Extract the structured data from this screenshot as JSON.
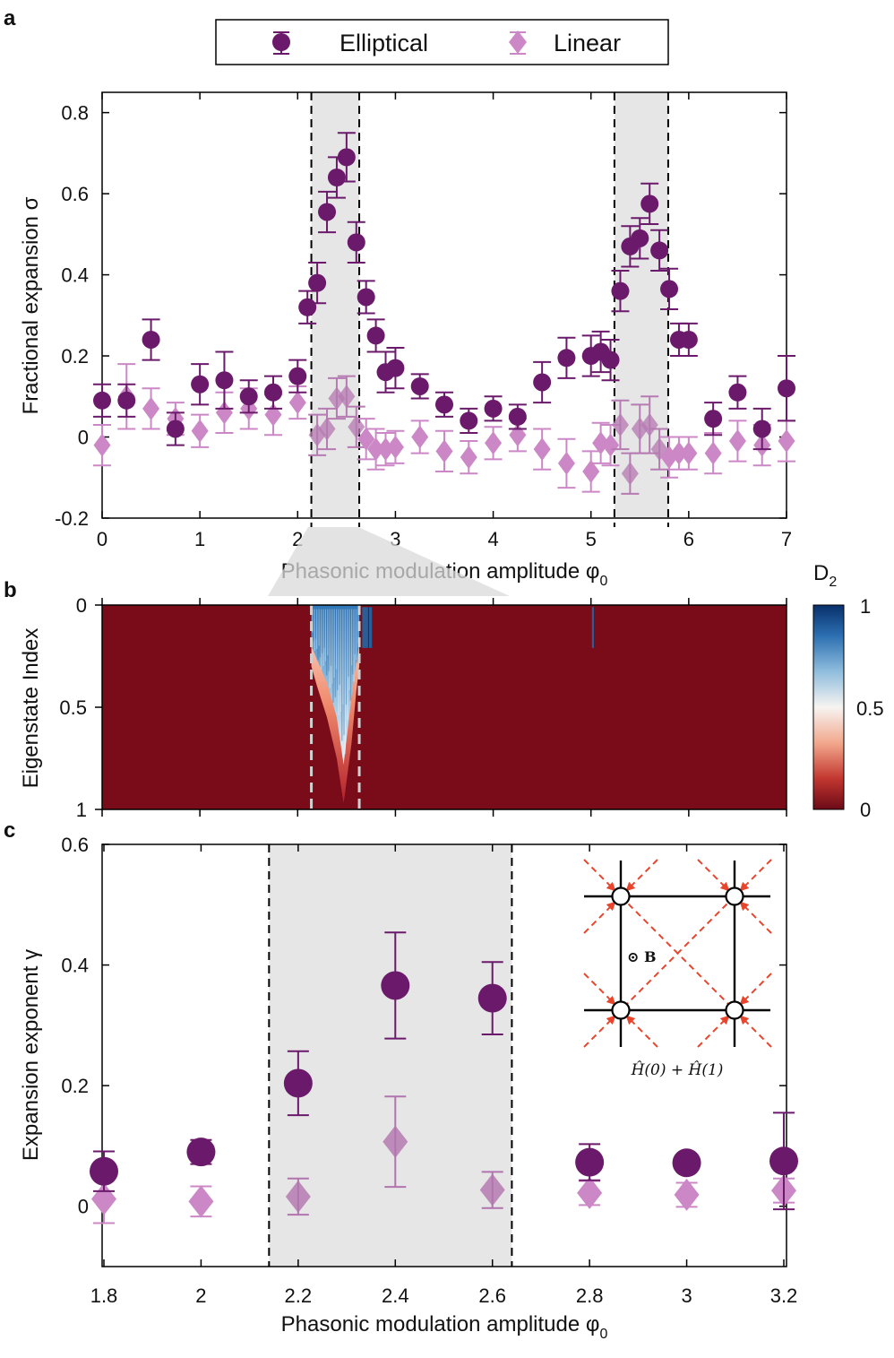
{
  "colors": {
    "elliptical": "#6b1a6b",
    "linear": "#cc88c6",
    "shade": "#e6e6e6",
    "arrow": "#e8452c"
  },
  "legend": {
    "elliptical": "Elliptical",
    "linear": "Linear"
  },
  "chart_data": [
    {
      "panel": "a",
      "type": "scatter",
      "xlabel": "Phasonic modulation amplitude φ",
      "xlabel_sub": "0",
      "ylabel": "Fractional expansion σ",
      "xlim": [
        0,
        7
      ],
      "ylim": [
        -0.2,
        0.85
      ],
      "xticks": [
        0,
        1,
        2,
        3,
        4,
        5,
        6,
        7
      ],
      "yticks": [
        -0.2,
        0,
        0.2,
        0.4,
        0.6,
        0.8
      ],
      "ytick_labels": [
        "-0.2",
        "0",
        "0.2",
        "0.4",
        "0.6",
        "0.8"
      ],
      "shaded_regions": [
        [
          2.14,
          2.63
        ],
        [
          5.24,
          5.79
        ]
      ],
      "series": [
        {
          "name": "Elliptical",
          "marker": "circle",
          "x": [
            0,
            0.25,
            0.5,
            0.75,
            1.0,
            1.25,
            1.5,
            1.75,
            2.0,
            2.1,
            2.2,
            2.3,
            2.4,
            2.5,
            2.6,
            2.7,
            2.8,
            2.9,
            3.0,
            3.25,
            3.5,
            3.75,
            4.0,
            4.25,
            4.5,
            4.75,
            5.0,
            5.1,
            5.2,
            5.3,
            5.4,
            5.5,
            5.6,
            5.7,
            5.8,
            5.9,
            6.0,
            6.25,
            6.5,
            6.75,
            7.0
          ],
          "y": [
            0.09,
            0.09,
            0.24,
            0.02,
            0.13,
            0.14,
            0.1,
            0.11,
            0.15,
            0.32,
            0.38,
            0.555,
            0.64,
            0.69,
            0.48,
            0.345,
            0.25,
            0.16,
            0.17,
            0.125,
            0.08,
            0.04,
            0.07,
            0.05,
            0.135,
            0.195,
            0.2,
            0.21,
            0.19,
            0.36,
            0.47,
            0.49,
            0.575,
            0.46,
            0.365,
            0.24,
            0.24,
            0.045,
            0.11,
            0.02,
            0.12
          ],
          "err": [
            0.04,
            0.04,
            0.05,
            0.04,
            0.05,
            0.07,
            0.04,
            0.04,
            0.04,
            0.04,
            0.05,
            0.05,
            0.05,
            0.06,
            0.05,
            0.04,
            0.04,
            0.05,
            0.05,
            0.03,
            0.03,
            0.03,
            0.03,
            0.03,
            0.05,
            0.05,
            0.05,
            0.05,
            0.05,
            0.05,
            0.05,
            0.05,
            0.05,
            0.05,
            0.05,
            0.04,
            0.04,
            0.04,
            0.04,
            0.05,
            0.08
          ]
        },
        {
          "name": "Linear",
          "marker": "diamond",
          "x": [
            0,
            0.25,
            0.5,
            0.75,
            1.0,
            1.25,
            1.5,
            1.75,
            2.0,
            2.2,
            2.3,
            2.4,
            2.5,
            2.6,
            2.7,
            2.8,
            2.9,
            3.0,
            3.25,
            3.5,
            3.75,
            4.0,
            4.25,
            4.5,
            4.75,
            5.0,
            5.1,
            5.2,
            5.3,
            5.4,
            5.5,
            5.6,
            5.7,
            5.8,
            5.9,
            6.0,
            6.25,
            6.5,
            6.75,
            7.0
          ],
          "y": [
            -0.02,
            0.1,
            0.07,
            0.045,
            0.015,
            0.06,
            0.07,
            0.055,
            0.085,
            0.005,
            0.02,
            0.095,
            0.1,
            0.025,
            -0.005,
            -0.03,
            -0.03,
            -0.025,
            0.0,
            -0.035,
            -0.05,
            -0.015,
            0.005,
            -0.03,
            -0.065,
            -0.085,
            -0.015,
            -0.02,
            0.03,
            -0.09,
            0.02,
            0.03,
            -0.03,
            -0.05,
            -0.04,
            -0.04,
            -0.04,
            -0.01,
            -0.02,
            -0.01
          ],
          "err": [
            0.05,
            0.08,
            0.05,
            0.04,
            0.04,
            0.05,
            0.05,
            0.05,
            0.04,
            0.05,
            0.05,
            0.05,
            0.05,
            0.05,
            0.05,
            0.05,
            0.04,
            0.04,
            0.04,
            0.05,
            0.04,
            0.04,
            0.04,
            0.05,
            0.06,
            0.05,
            0.05,
            0.05,
            0.06,
            0.05,
            0.06,
            0.07,
            0.05,
            0.05,
            0.04,
            0.04,
            0.05,
            0.05,
            0.05,
            0.05
          ]
        }
      ]
    },
    {
      "panel": "b",
      "type": "heatmap",
      "xlim": [
        0,
        7
      ],
      "ylim": [
        0,
        1
      ],
      "ylabel": "Eigenstate Index",
      "yticks": [
        0,
        0.5,
        1
      ],
      "ytick_labels": [
        "0",
        "0.5",
        "1"
      ],
      "colorbar": {
        "label": "D",
        "label_sub": "2",
        "ticks": [
          "1",
          "0.5",
          "0"
        ],
        "range": [
          0,
          1
        ]
      },
      "dashed_lines_x": [
        2.14,
        2.63
      ],
      "profile_x": [
        2.14,
        2.2,
        2.3,
        2.4,
        2.47,
        2.55,
        2.6,
        2.63
      ],
      "profile_red": [
        0.3,
        0.4,
        0.55,
        0.75,
        0.97,
        0.68,
        0.42,
        0.3
      ],
      "profile_white": [
        0.2,
        0.27,
        0.38,
        0.55,
        0.78,
        0.45,
        0.28,
        0.2
      ],
      "island_x": [
        2.66,
        2.72,
        2.73,
        2.76,
        5.01,
        5.03
      ],
      "island_depth": 0.2
    },
    {
      "panel": "c",
      "type": "scatter",
      "xlabel": "Phasonic modulation amplitude φ",
      "xlabel_sub": "0",
      "ylabel": "Expansion exponent γ",
      "xlim": [
        1.8,
        3.2
      ],
      "ylim": [
        -0.1,
        0.6
      ],
      "xticks": [
        1.8,
        2,
        2.2,
        2.4,
        2.6,
        2.8,
        3,
        3.2
      ],
      "xtick_labels": [
        "1.8",
        "2",
        "2.2",
        "2.4",
        "2.6",
        "2.8",
        "3",
        "3.2"
      ],
      "yticks": [
        0,
        0.2,
        0.4,
        0.6
      ],
      "ytick_labels": [
        "0",
        "0.2",
        "0.4",
        "0.6"
      ],
      "shaded_regions": [
        [
          2.14,
          2.64
        ]
      ],
      "series": [
        {
          "name": "Elliptical",
          "marker": "circle",
          "x": [
            1.8,
            2.0,
            2.2,
            2.4,
            2.6,
            2.8,
            3.0,
            3.2
          ],
          "y": [
            0.058,
            0.09,
            0.204,
            0.366,
            0.345,
            0.073,
            0.072,
            0.075
          ],
          "err": [
            0.033,
            0.02,
            0.053,
            0.088,
            0.06,
            0.03,
            0.01,
            0.08
          ]
        },
        {
          "name": "Linear",
          "marker": "diamond",
          "x": [
            1.8,
            2.0,
            2.2,
            2.4,
            2.6,
            2.8,
            3.0,
            3.2
          ],
          "y": [
            0.012,
            0.008,
            0.016,
            0.107,
            0.027,
            0.022,
            0.019,
            0.026
          ],
          "err": [
            0.04,
            0.025,
            0.03,
            0.075,
            0.03,
            0.02,
            0.02,
            0.02
          ]
        }
      ],
      "inset_label": "Ĥ(0) + Ĥ(1)",
      "inset_field": "⊙ B"
    }
  ],
  "panel_labels": {
    "a": "a",
    "b": "b",
    "c": "c"
  }
}
